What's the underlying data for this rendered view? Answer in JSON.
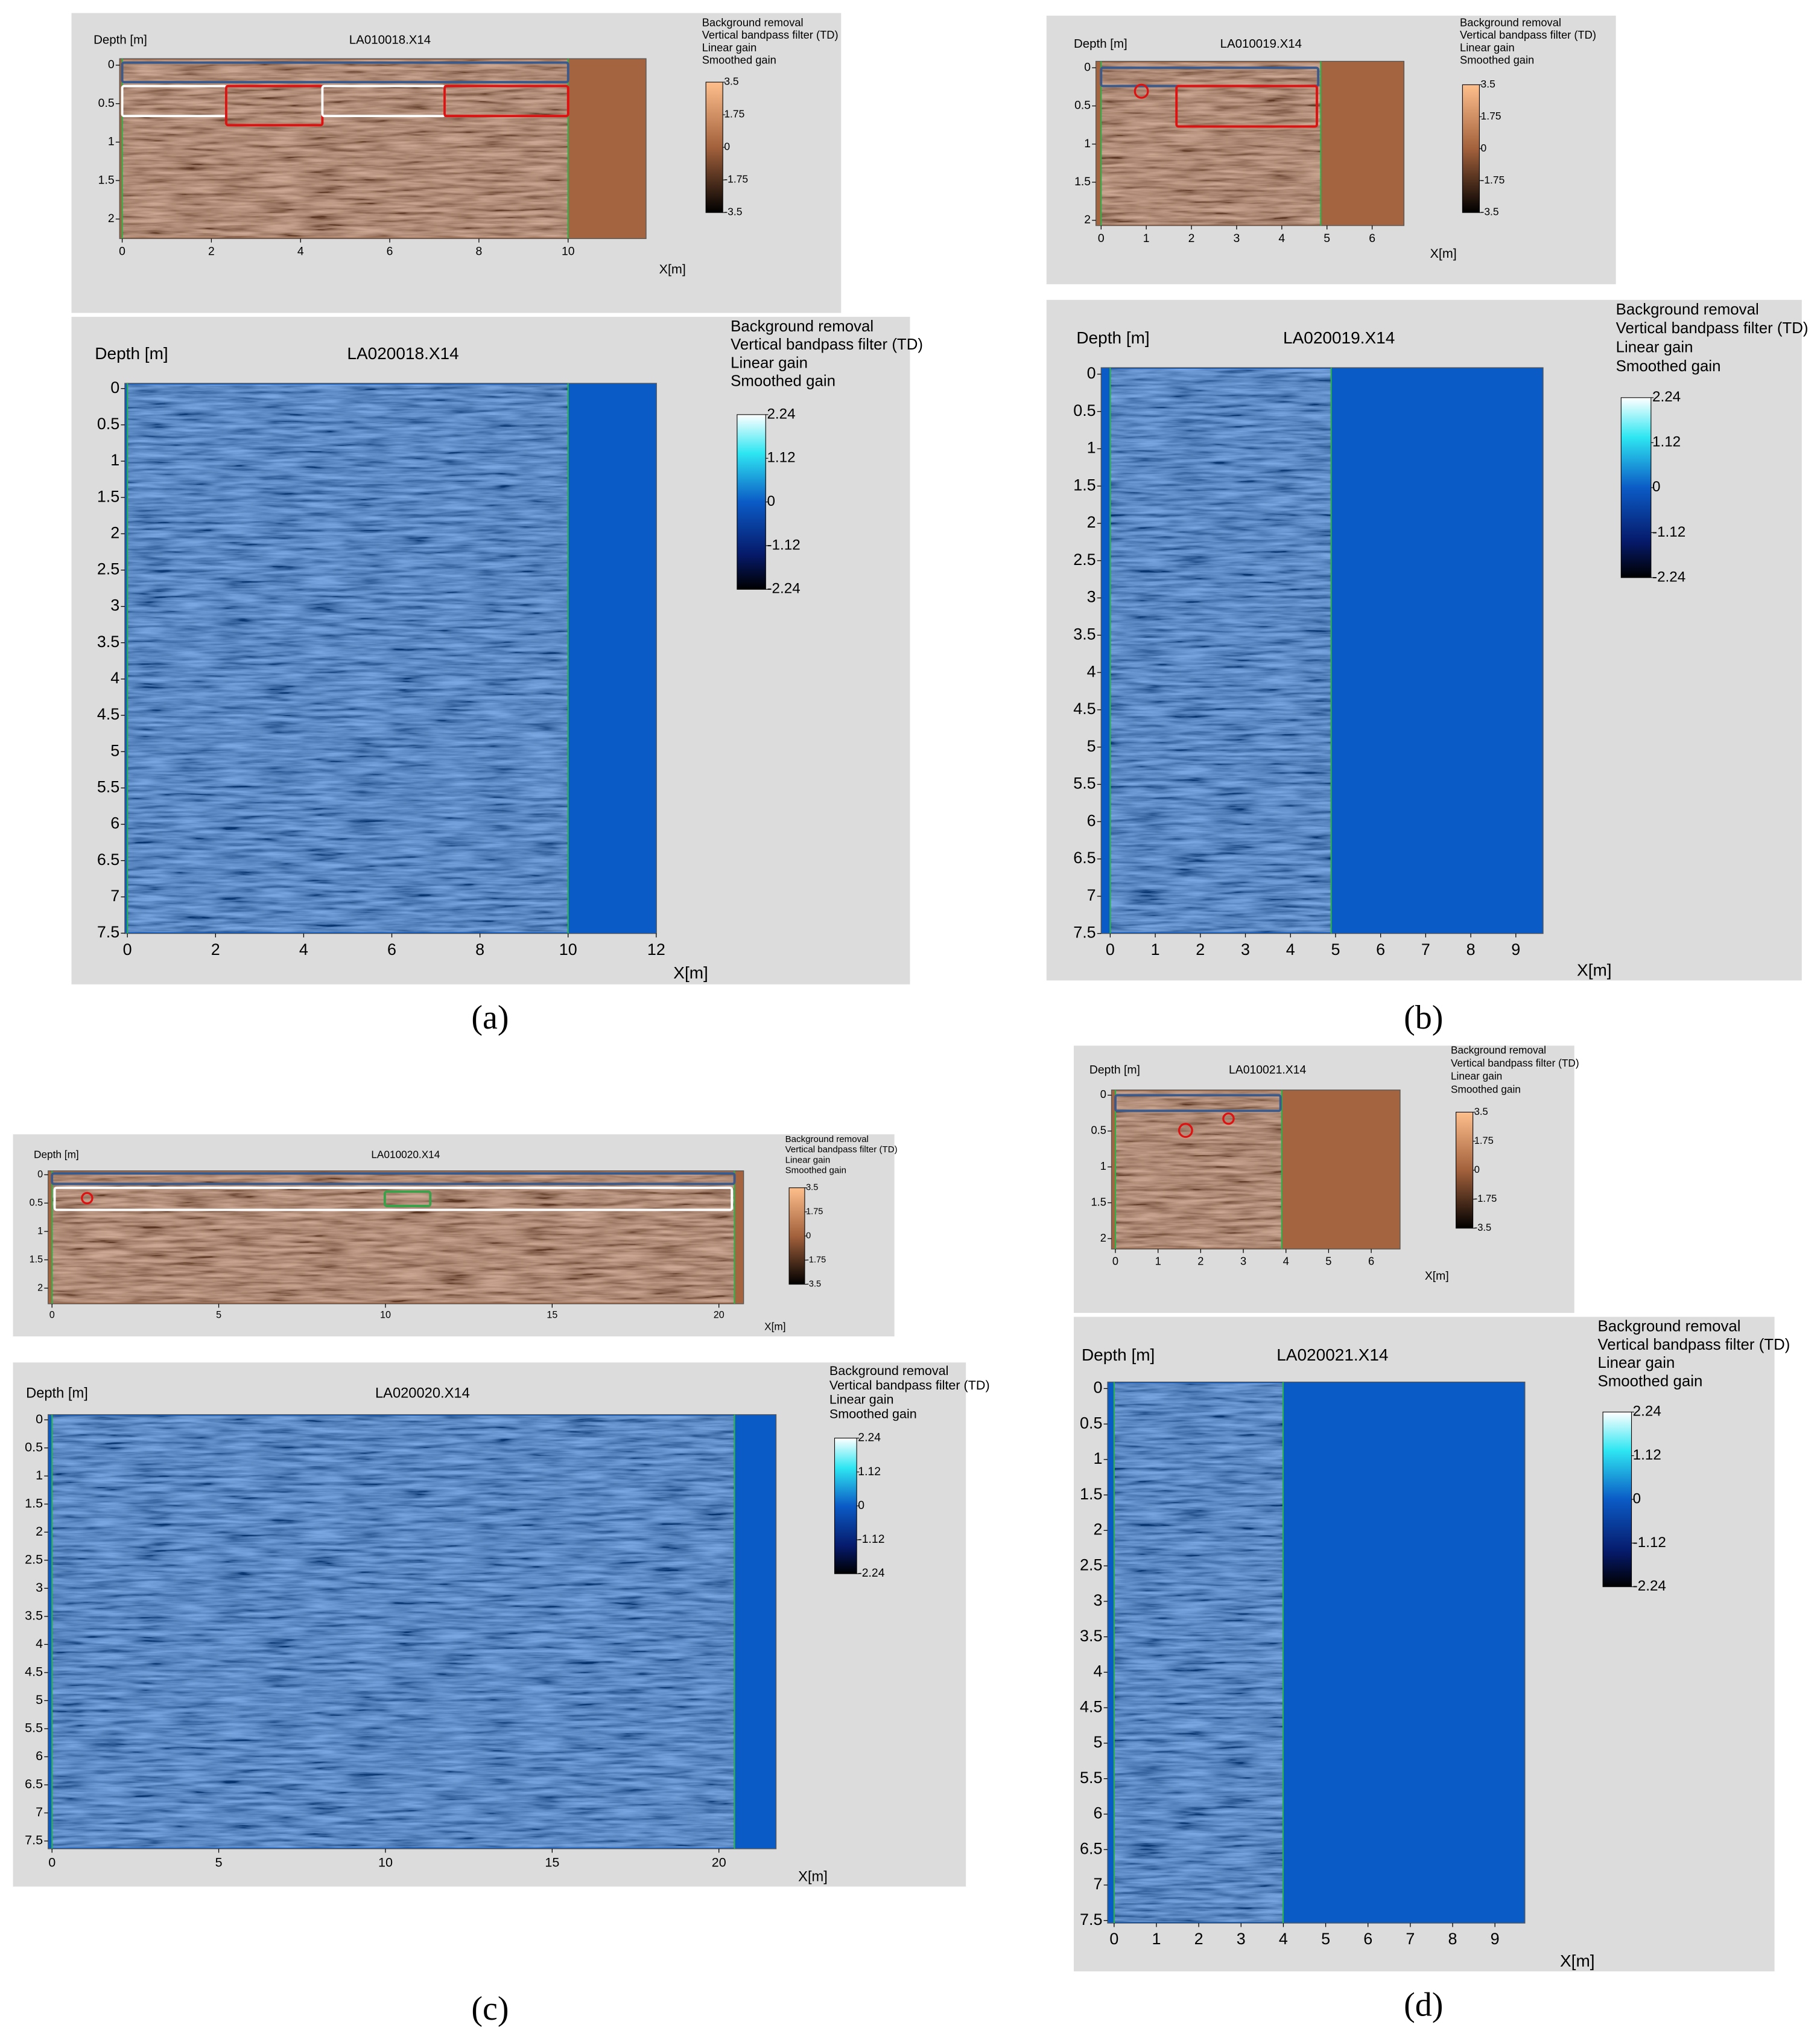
{
  "panels": [
    {
      "label": "(a)",
      "radargrams": [
        {
          "title": "LA010018.X14",
          "y_label": "Depth [m]",
          "x_label": "X[m]",
          "filters": [
            "Background removal",
            "Vertical bandpass filter (TD)",
            "Linear gain",
            "Smoothed gain"
          ],
          "depth_ticks": [
            0,
            0.5,
            1,
            1.5,
            2
          ],
          "x_ticks": [
            0,
            2,
            4,
            6,
            8,
            10
          ],
          "colorbar_ticks": [
            3.5,
            1.75,
            0,
            -1.75,
            -3.5
          ]
        },
        {
          "title": "LA020018.X14",
          "y_label": "Depth [m]",
          "x_label": "X[m]",
          "filters": [
            "Background removal",
            "Vertical bandpass filter (TD)",
            "Linear gain",
            "Smoothed gain"
          ],
          "depth_ticks": [
            0,
            0.5,
            1,
            1.5,
            2,
            2.5,
            3,
            3.5,
            4,
            4.5,
            5,
            5.5,
            6,
            6.5,
            7,
            7.5
          ],
          "x_ticks": [
            0,
            2,
            4,
            6,
            8,
            10,
            12
          ],
          "colorbar_ticks": [
            2.24,
            1.12,
            0,
            -1.12,
            -2.24
          ]
        }
      ]
    },
    {
      "label": "(b)",
      "radargrams": [
        {
          "title": "LA010019.X14",
          "y_label": "Depth [m]",
          "x_label": "X[m]",
          "filters": [
            "Background removal",
            "Vertical bandpass filter (TD)",
            "Linear gain",
            "Smoothed gain"
          ],
          "depth_ticks": [
            0,
            0.5,
            1,
            1.5,
            2
          ],
          "x_ticks": [
            0,
            1,
            2,
            3,
            4,
            5,
            6
          ],
          "colorbar_ticks": [
            3.5,
            1.75,
            0,
            -1.75,
            -3.5
          ]
        },
        {
          "title": "LA020019.X14",
          "y_label": "Depth [m]",
          "x_label": "X[m]",
          "filters": [
            "Background removal",
            "Vertical bandpass filter (TD)",
            "Linear gain",
            "Smoothed gain"
          ],
          "depth_ticks": [
            0,
            0.5,
            1,
            1.5,
            2,
            2.5,
            3,
            3.5,
            4,
            4.5,
            5,
            5.5,
            6,
            6.5,
            7,
            7.5
          ],
          "x_ticks": [
            0,
            1,
            2,
            3,
            4,
            5,
            6,
            7,
            8,
            9
          ],
          "colorbar_ticks": [
            2.24,
            1.12,
            0,
            -1.12,
            -2.24
          ]
        }
      ]
    },
    {
      "label": "(c)",
      "radargrams": [
        {
          "title": "LA010020.X14",
          "y_label": "Depth [m]",
          "x_label": "X[m]",
          "filters": [
            "Background removal",
            "Vertical bandpass filter (TD)",
            "Linear gain",
            "Smoothed gain"
          ],
          "depth_ticks": [
            0,
            0.5,
            1,
            1.5,
            2
          ],
          "x_ticks": [
            0,
            5,
            10,
            15,
            20
          ],
          "colorbar_ticks": [
            3.5,
            1.75,
            0,
            -1.75,
            -3.5
          ]
        },
        {
          "title": "LA020020.X14",
          "y_label": "Depth [m]",
          "x_label": "X[m]",
          "filters": [
            "Background removal",
            "Vertical bandpass filter (TD)",
            "Linear gain",
            "Smoothed gain"
          ],
          "depth_ticks": [
            0,
            0.5,
            1,
            1.5,
            2,
            2.5,
            3,
            3.5,
            4,
            4.5,
            5,
            5.5,
            6,
            6.5,
            7,
            7.5
          ],
          "x_ticks": [
            0,
            5,
            10,
            15,
            20
          ],
          "colorbar_ticks": [
            2.24,
            1.12,
            0,
            -1.12,
            -2.24
          ]
        }
      ]
    },
    {
      "label": "(d)",
      "radargrams": [
        {
          "title": "LA010021.X14",
          "y_label": "Depth [m]",
          "x_label": "X[m]",
          "filters": [
            "Background removal",
            "Vertical bandpass filter (TD)",
            "Linear gain",
            "Smoothed gain"
          ],
          "depth_ticks": [
            0,
            0.5,
            1,
            1.5,
            2
          ],
          "x_ticks": [
            0,
            1,
            2,
            3,
            4,
            5,
            6
          ],
          "colorbar_ticks": [
            3.5,
            1.75,
            0,
            -1.75,
            -3.5
          ]
        },
        {
          "title": "LA020021.X14",
          "y_label": "Depth [m]",
          "x_label": "X[m]",
          "filters": [
            "Background removal",
            "Vertical bandpass filter (TD)",
            "Linear gain",
            "Smoothed gain"
          ],
          "depth_ticks": [
            0,
            0.5,
            1,
            1.5,
            2,
            2.5,
            3,
            3.5,
            4,
            4.5,
            5,
            5.5,
            6,
            6.5,
            7,
            7.5
          ],
          "x_ticks": [
            0,
            1,
            2,
            3,
            4,
            5,
            6,
            7,
            8,
            9
          ],
          "colorbar_ticks": [
            2.24,
            1.12,
            0,
            -1.12,
            -2.24
          ]
        }
      ]
    }
  ]
}
